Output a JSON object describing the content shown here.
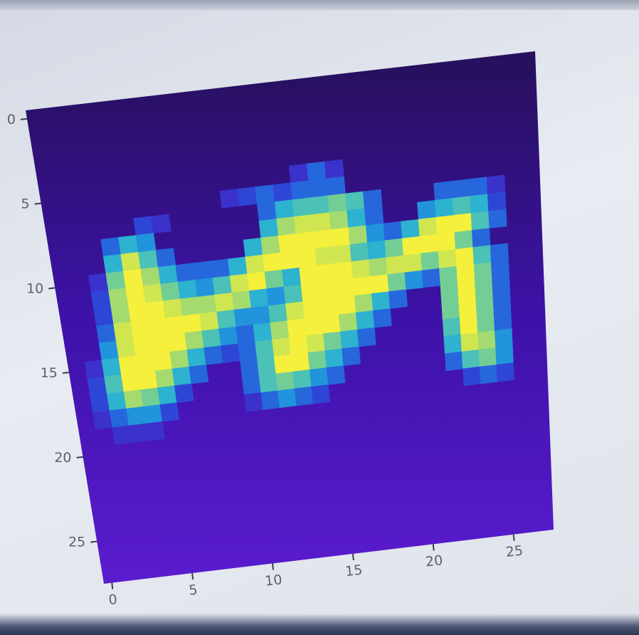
{
  "chart_data": {
    "type": "heatmap",
    "colormap": "viridis-like",
    "rows": 28,
    "cols": 28,
    "xticks": [
      "0",
      "5",
      "10",
      "15",
      "20",
      "25"
    ],
    "yticks": [
      "0",
      "5",
      "10",
      "15",
      "20",
      "25"
    ],
    "xtick_values": [
      0,
      5,
      10,
      15,
      20,
      25
    ],
    "ytick_values": [
      0,
      5,
      10,
      15,
      20,
      25
    ],
    "matrix": [
      [
        0,
        0,
        0,
        0,
        0,
        0,
        0,
        0,
        0,
        0,
        0,
        0,
        0,
        0,
        0,
        0,
        0,
        0,
        0,
        0,
        0,
        0,
        0,
        0,
        0,
        0,
        0,
        0
      ],
      [
        0,
        0,
        0,
        0,
        0,
        0,
        0,
        0,
        0,
        0,
        0,
        0,
        0,
        0,
        0,
        0,
        0,
        0,
        0,
        0,
        0,
        0,
        0,
        0,
        0,
        0,
        0,
        0
      ],
      [
        0,
        0,
        0,
        0,
        0,
        0,
        0,
        0,
        0,
        0,
        0,
        0,
        0,
        0,
        0,
        0,
        0,
        0,
        0,
        0,
        0,
        0,
        0,
        0,
        0,
        0,
        0,
        0
      ],
      [
        0,
        0,
        0,
        0,
        0,
        0,
        0,
        0,
        0,
        0,
        0,
        0,
        0,
        0,
        0,
        0,
        0,
        0,
        0,
        0,
        0,
        0,
        0,
        0,
        0,
        0,
        0,
        0
      ],
      [
        0,
        0,
        0,
        0,
        0,
        0,
        0,
        0,
        0,
        0,
        0,
        0,
        0,
        0,
        0,
        0,
        0,
        0,
        0,
        0,
        0,
        0,
        0,
        0,
        0,
        0,
        0,
        0
      ],
      [
        0,
        0,
        0,
        0,
        0,
        0,
        0,
        0,
        0,
        0,
        0,
        0,
        0,
        0,
        0.1,
        0.3,
        0.1,
        0,
        0,
        0,
        0,
        0,
        0,
        0,
        0,
        0,
        0,
        0
      ],
      [
        0,
        0,
        0,
        0,
        0,
        0,
        0,
        0,
        0,
        0,
        0.1,
        0.2,
        0.3,
        0.2,
        0.3,
        0.3,
        0.3,
        0,
        0,
        0,
        0,
        0,
        0,
        0,
        0,
        0,
        0,
        0
      ],
      [
        0,
        0,
        0,
        0,
        0,
        0.2,
        0.1,
        0,
        0,
        0,
        0,
        0,
        0.3,
        0.5,
        0.6,
        0.6,
        0.7,
        0.6,
        0.3,
        0,
        0,
        0,
        0.3,
        0.3,
        0.3,
        0.1,
        0,
        0
      ],
      [
        0,
        0,
        0,
        0.3,
        0.5,
        0.4,
        0,
        0,
        0,
        0,
        0,
        0,
        0.5,
        0.8,
        0.9,
        0.9,
        0.8,
        0.5,
        0.3,
        0,
        0,
        0.4,
        0.5,
        0.6,
        0.5,
        0.2,
        0,
        0
      ],
      [
        0,
        0,
        0,
        0.5,
        0.9,
        0.6,
        0.3,
        0,
        0,
        0,
        0,
        0.5,
        0.8,
        1,
        1,
        1,
        1,
        0.8,
        0.4,
        0.3,
        0.5,
        0.9,
        1,
        1,
        0.6,
        0.3,
        0,
        0
      ],
      [
        0,
        0,
        0.1,
        0.7,
        1,
        0.8,
        0.5,
        0.3,
        0.3,
        0.3,
        0.5,
        0.9,
        1,
        1,
        1,
        0.9,
        0.9,
        0.6,
        0.5,
        0.7,
        1,
        1,
        1,
        0.7,
        0.3,
        0,
        0,
        0
      ],
      [
        0,
        0,
        0.2,
        0.8,
        1,
        0.9,
        0.7,
        0.5,
        0.4,
        0.6,
        0.9,
        1,
        0.7,
        0.5,
        1,
        1,
        1,
        0.9,
        0.8,
        0.9,
        0.9,
        0.7,
        0.9,
        1,
        0.6,
        0.3,
        0,
        0
      ],
      [
        0,
        0,
        0.2,
        0.8,
        1,
        1,
        0.9,
        0.8,
        0.8,
        0.9,
        0.8,
        0.5,
        0.4,
        0.6,
        1,
        1,
        1,
        1,
        1,
        0.7,
        0.4,
        0.3,
        0.7,
        1,
        0.7,
        0.3,
        0,
        0
      ],
      [
        0,
        0,
        0.3,
        0.9,
        1,
        1,
        1,
        1,
        0.9,
        0.6,
        0.4,
        0.4,
        0.6,
        0.9,
        1,
        1,
        1,
        0.8,
        0.5,
        0.3,
        0,
        0,
        0.7,
        1,
        0.7,
        0.3,
        0,
        0
      ],
      [
        0,
        0,
        0.4,
        0.9,
        1,
        1,
        1,
        0.8,
        0.6,
        0.4,
        0.3,
        0.5,
        0.8,
        1,
        1,
        1,
        0.8,
        0.5,
        0.3,
        0,
        0,
        0,
        0.7,
        1,
        0.7,
        0.3,
        0,
        0
      ],
      [
        0,
        0.1,
        0.5,
        1,
        1,
        1,
        0.8,
        0.5,
        0.3,
        0.2,
        0.3,
        0.6,
        0.9,
        1,
        0.9,
        0.7,
        0.5,
        0.3,
        0,
        0,
        0,
        0,
        0.6,
        1,
        0.7,
        0.3,
        0,
        0
      ],
      [
        0,
        0.2,
        0.6,
        1,
        1,
        0.8,
        0.5,
        0.3,
        0,
        0,
        0.3,
        0.6,
        1,
        1,
        0.7,
        0.5,
        0.3,
        0,
        0,
        0,
        0,
        0,
        0.5,
        0.9,
        0.8,
        0.4,
        0,
        0
      ],
      [
        0,
        0.2,
        0.5,
        0.8,
        0.7,
        0.5,
        0.2,
        0,
        0,
        0,
        0.3,
        0.6,
        0.7,
        0.6,
        0.4,
        0.3,
        0,
        0,
        0,
        0,
        0,
        0,
        0.3,
        0.6,
        0.7,
        0.4,
        0,
        0
      ],
      [
        0,
        0.1,
        0.3,
        0.4,
        0.4,
        0.2,
        0,
        0,
        0,
        0,
        0.1,
        0.3,
        0.4,
        0.3,
        0.2,
        0,
        0,
        0,
        0,
        0,
        0,
        0,
        0,
        0.2,
        0.3,
        0.2,
        0,
        0
      ],
      [
        0,
        0,
        0.1,
        0.1,
        0.1,
        0,
        0,
        0,
        0,
        0,
        0,
        0,
        0,
        0,
        0,
        0,
        0,
        0,
        0,
        0,
        0,
        0,
        0,
        0,
        0,
        0,
        0,
        0
      ],
      [
        0,
        0,
        0,
        0,
        0,
        0,
        0,
        0,
        0,
        0,
        0,
        0,
        0,
        0,
        0,
        0,
        0,
        0,
        0,
        0,
        0,
        0,
        0,
        0,
        0,
        0,
        0,
        0
      ],
      [
        0,
        0,
        0,
        0,
        0,
        0,
        0,
        0,
        0,
        0,
        0,
        0,
        0,
        0,
        0,
        0,
        0,
        0,
        0,
        0,
        0,
        0,
        0,
        0,
        0,
        0,
        0,
        0
      ],
      [
        0,
        0,
        0,
        0,
        0,
        0,
        0,
        0,
        0,
        0,
        0,
        0,
        0,
        0,
        0,
        0,
        0,
        0,
        0,
        0,
        0,
        0,
        0,
        0,
        0,
        0,
        0,
        0
      ],
      [
        0,
        0,
        0,
        0,
        0,
        0,
        0,
        0,
        0,
        0,
        0,
        0,
        0,
        0,
        0,
        0,
        0,
        0,
        0,
        0,
        0,
        0,
        0,
        0,
        0,
        0,
        0,
        0
      ],
      [
        0,
        0,
        0,
        0,
        0,
        0,
        0,
        0,
        0,
        0,
        0,
        0,
        0,
        0,
        0,
        0,
        0,
        0,
        0,
        0,
        0,
        0,
        0,
        0,
        0,
        0,
        0,
        0
      ],
      [
        0,
        0,
        0,
        0,
        0,
        0,
        0,
        0,
        0,
        0,
        0,
        0,
        0,
        0,
        0,
        0,
        0,
        0,
        0,
        0,
        0,
        0,
        0,
        0,
        0,
        0,
        0,
        0
      ],
      [
        0,
        0,
        0,
        0,
        0,
        0,
        0,
        0,
        0,
        0,
        0,
        0,
        0,
        0,
        0,
        0,
        0,
        0,
        0,
        0,
        0,
        0,
        0,
        0,
        0,
        0,
        0,
        0
      ],
      [
        0,
        0,
        0,
        0,
        0,
        0,
        0,
        0,
        0,
        0,
        0,
        0,
        0,
        0,
        0,
        0,
        0,
        0,
        0,
        0,
        0,
        0,
        0,
        0,
        0,
        0,
        0,
        0
      ]
    ]
  }
}
